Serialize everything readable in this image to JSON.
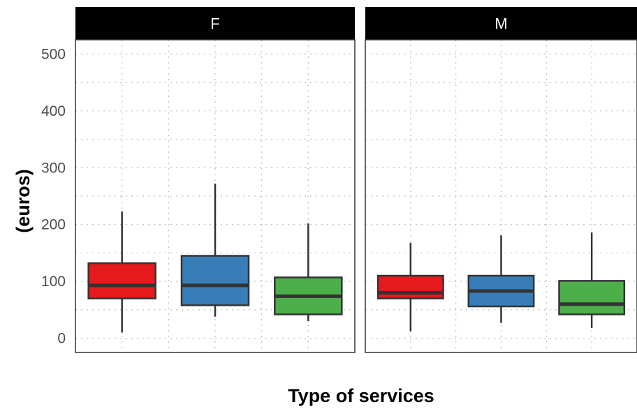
{
  "chart_data": {
    "type": "box",
    "xlabel": "Type of services",
    "ylabel": "(euros)",
    "ylim": [
      -25,
      525
    ],
    "yticks": [
      0,
      100,
      200,
      300,
      400,
      500
    ],
    "grid": true,
    "series_colors": [
      "#e41a1c",
      "#377eb8",
      "#4daf4a"
    ],
    "panels": [
      {
        "label": "F",
        "boxes": [
          {
            "min": 10,
            "q1": 70,
            "median": 93,
            "q3": 132,
            "max": 223
          },
          {
            "min": 38,
            "q1": 58,
            "median": 93,
            "q3": 145,
            "max": 272
          },
          {
            "min": 30,
            "q1": 42,
            "median": 74,
            "q3": 107,
            "max": 202
          }
        ]
      },
      {
        "label": "M",
        "boxes": [
          {
            "min": 12,
            "q1": 70,
            "median": 80,
            "q3": 110,
            "max": 168
          },
          {
            "min": 27,
            "q1": 56,
            "median": 83,
            "q3": 110,
            "max": 181
          },
          {
            "min": 18,
            "q1": 42,
            "median": 60,
            "q3": 101,
            "max": 186
          }
        ]
      }
    ]
  }
}
